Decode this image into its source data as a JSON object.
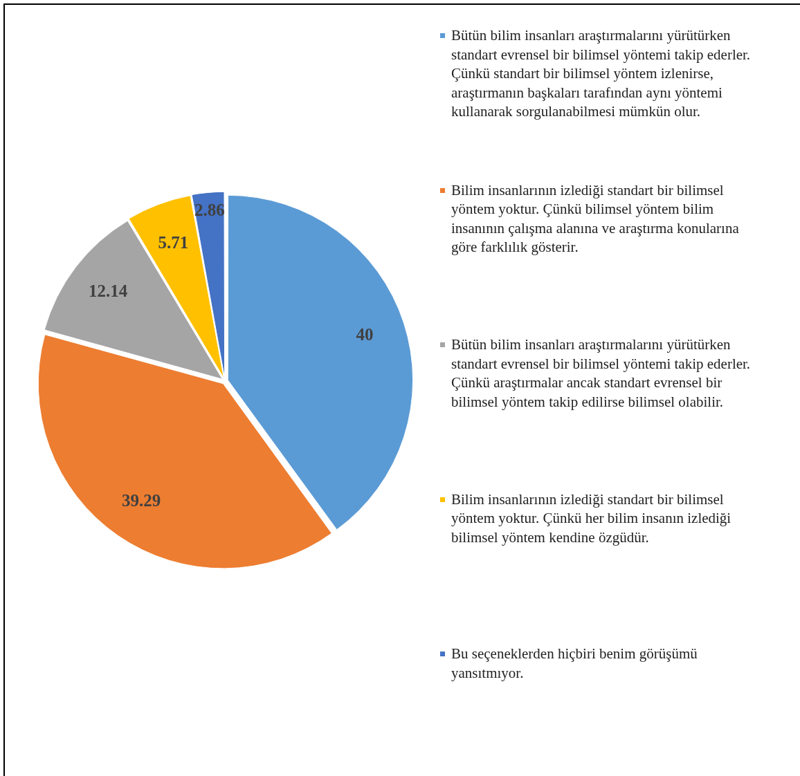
{
  "chart_data": {
    "type": "pie",
    "categories": [
      "Bütün bilim insanları araştırmalarını yürütürken standart evrensel bir bilimsel yöntemi takip ederler. Çünkü standart bir bilimsel yöntem izlenirse, araştırmanın başkaları tarafından aynı yöntemi kullanarak sorgulanabilmesi mümkün olur.",
      "Bilim insanlarının izlediği standart bir bilimsel yöntem yoktur. Çünkü bilimsel yöntem bilim insanının çalışma alanına ve araştırma konularına göre farklılık gösterir.",
      "Bütün bilim insanları araştırmalarını yürütürken standart evrensel bir bilimsel yöntemi takip ederler. Çünkü araştırmalar ancak standart evrensel bir bilimsel yöntem takip edilirse bilimsel olabilir.",
      "Bilim insanlarının izlediği standart bir bilimsel yöntem yoktur. Çünkü her bilim insanın izlediği bilimsel yöntem kendine özgüdür.",
      "Bu seçeneklerden hiçbiri benim görüşümü yansıtmıyor."
    ],
    "values": [
      40,
      39.29,
      12.14,
      5.71,
      2.86
    ],
    "colors": [
      "#5b9bd5",
      "#ed7d31",
      "#a5a5a5",
      "#ffc000",
      "#4472c4"
    ],
    "data_labels": true,
    "legend": "right"
  }
}
